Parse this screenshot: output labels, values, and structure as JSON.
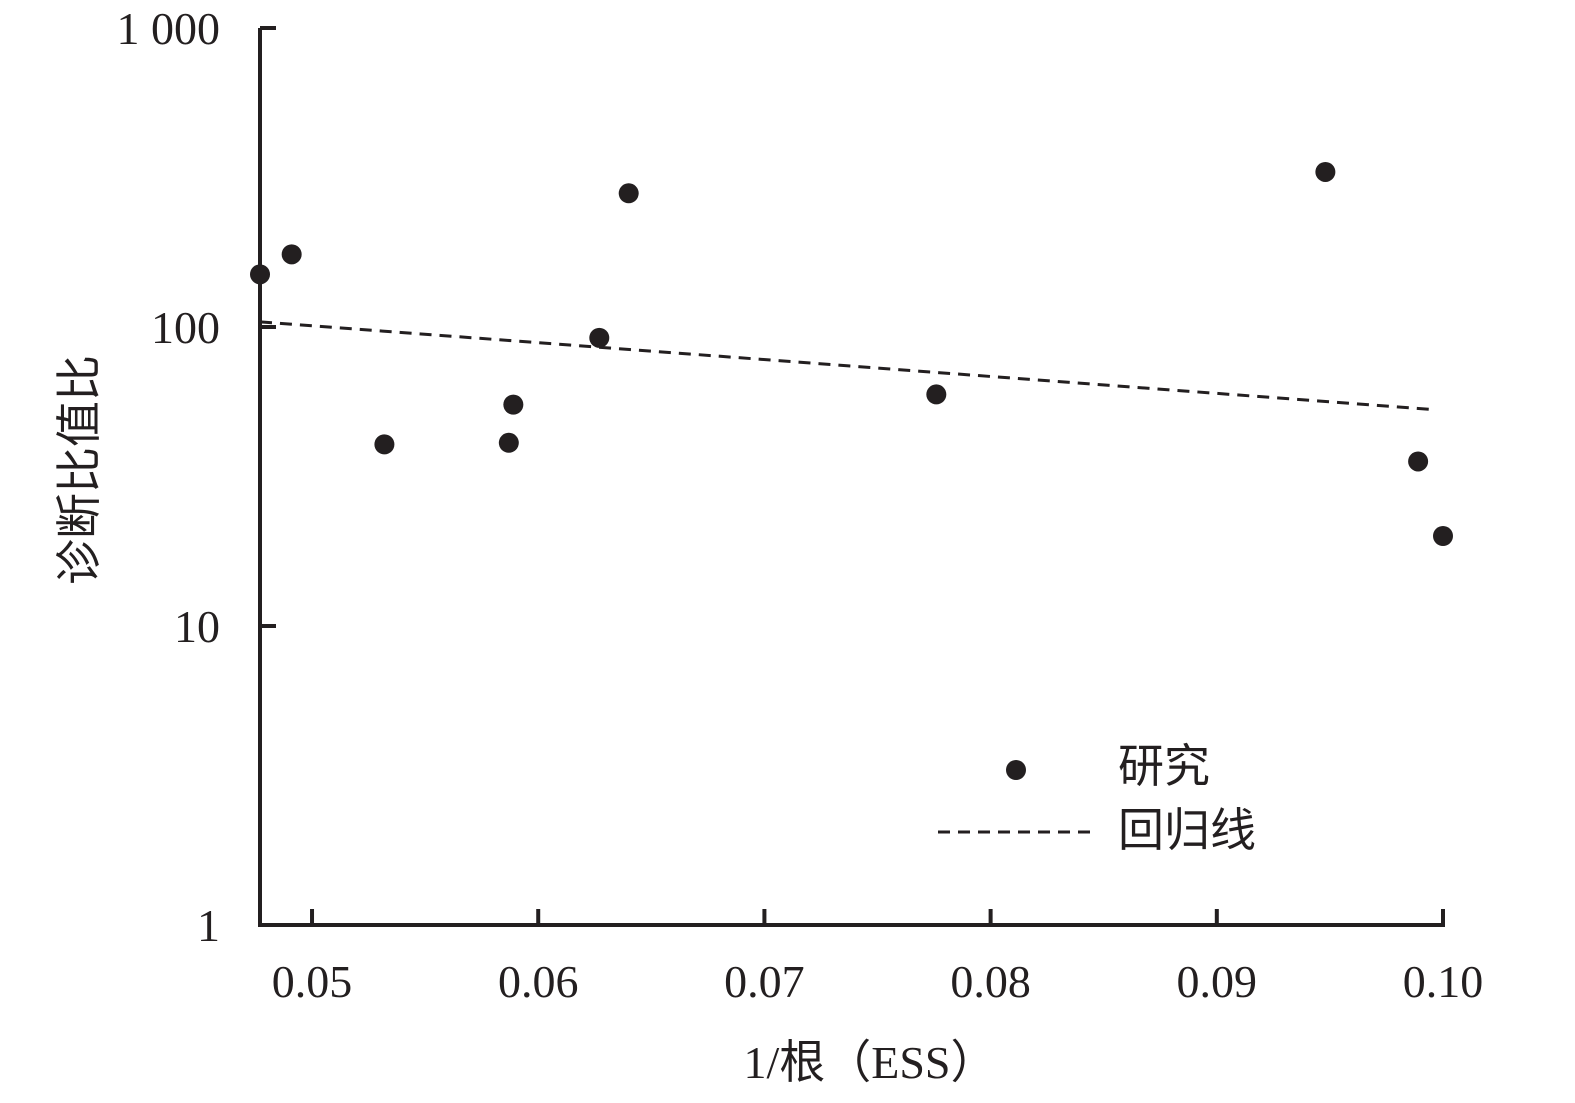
{
  "chart_data": {
    "type": "scatter",
    "xlabel": "1/根（ESS）",
    "ylabel": "诊断比值比",
    "x_ticks": [
      "0.05",
      "0.06",
      "0.07",
      "0.08",
      "0.09",
      "0.10"
    ],
    "x_tick_values": [
      0.05,
      0.06,
      0.07,
      0.08,
      0.09,
      0.1
    ],
    "y_scale": "log",
    "y_ticks": [
      "1",
      "10",
      "100",
      "1 000"
    ],
    "y_tick_values": [
      1,
      10,
      100,
      1000
    ],
    "xlim": [
      0.0477,
      0.1
    ],
    "ylim": [
      1,
      1000
    ],
    "grid": false,
    "legend_position": "bottom-right",
    "series": [
      {
        "name": "研究",
        "kind": "points",
        "color": "#231f20",
        "x": [
          0.0477,
          0.0491,
          0.0532,
          0.0587,
          0.0589,
          0.0627,
          0.064,
          0.0776,
          0.0948,
          0.0989,
          0.1
        ],
        "y": [
          150,
          175,
          40.5,
          41,
          55,
          92,
          280,
          59.5,
          330,
          35.5,
          20
        ]
      },
      {
        "name": "回归线",
        "kind": "dashed-line",
        "color": "#231f20",
        "x": [
          0.0477,
          0.0995
        ],
        "y": [
          104,
          53
        ]
      }
    ]
  }
}
